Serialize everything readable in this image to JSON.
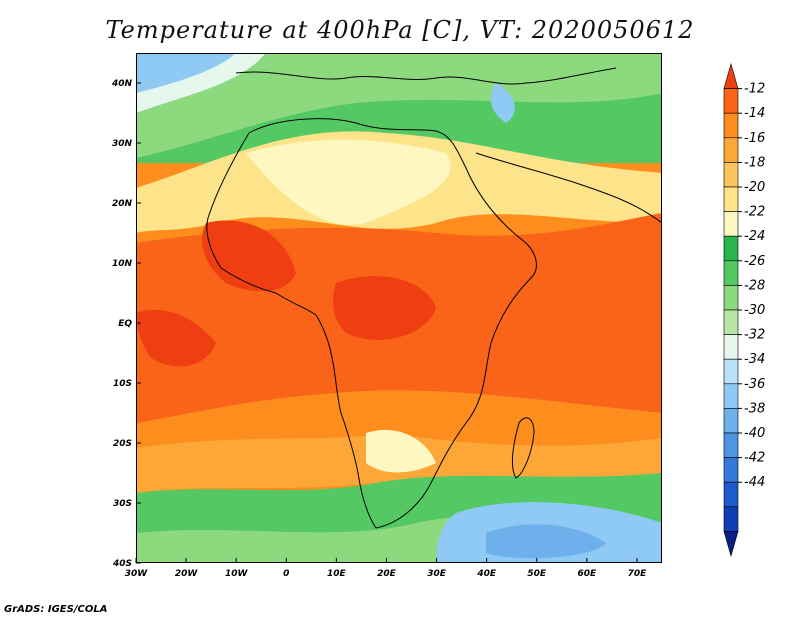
{
  "title": "Temperature at 400hPa [C], VT: 2020050612",
  "footer": "GrADS: IGES/COLA",
  "map": {
    "lon_range": [
      -30,
      75
    ],
    "lat_range": [
      -40,
      45
    ],
    "lon_ticks": [
      {
        "value": -30,
        "label": "30W"
      },
      {
        "value": -20,
        "label": "20W"
      },
      {
        "value": -10,
        "label": "10W"
      },
      {
        "value": 0,
        "label": "0"
      },
      {
        "value": 10,
        "label": "10E"
      },
      {
        "value": 20,
        "label": "20E"
      },
      {
        "value": 30,
        "label": "30E"
      },
      {
        "value": 40,
        "label": "40E"
      },
      {
        "value": 50,
        "label": "50E"
      },
      {
        "value": 60,
        "label": "60E"
      },
      {
        "value": 70,
        "label": "70E"
      }
    ],
    "lat_ticks": [
      {
        "value": 40,
        "label": "40N"
      },
      {
        "value": 30,
        "label": "30N"
      },
      {
        "value": 20,
        "label": "20N"
      },
      {
        "value": 10,
        "label": "10N"
      },
      {
        "value": 0,
        "label": "EQ"
      },
      {
        "value": -10,
        "label": "10S"
      },
      {
        "value": -20,
        "label": "20S"
      },
      {
        "value": -30,
        "label": "30S"
      },
      {
        "value": -40,
        "label": "40S"
      }
    ]
  },
  "colorbar": {
    "levels": [
      "-12",
      "-14",
      "-16",
      "-18",
      "-20",
      "-22",
      "-24",
      "-26",
      "-28",
      "-30",
      "-32",
      "-34",
      "-36",
      "-38",
      "-40",
      "-42",
      "-44"
    ],
    "colors": [
      "#f03e13",
      "#fa6418",
      "#fd8e1e",
      "#fca737",
      "#fbc55b",
      "#fde38a",
      "#fef7c1",
      "#2ab54a",
      "#54c862",
      "#8cd97e",
      "#b6e7a6",
      "#e6f7ee",
      "#b7e2f8",
      "#8ecaf3",
      "#6db0ec",
      "#4f95e6",
      "#3478dd",
      "#1d5bcd",
      "#0f3db3",
      "#0a1f85"
    ]
  }
}
